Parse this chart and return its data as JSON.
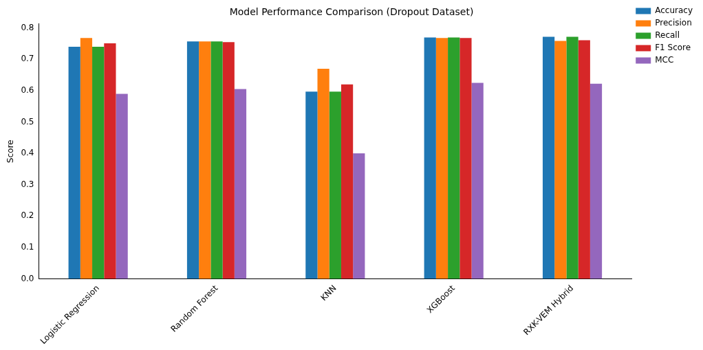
{
  "chart_data": {
    "type": "bar",
    "title": "Model Performance Comparison (Dropout Dataset)",
    "ylabel": "Score",
    "categories": [
      "Logistic Regression",
      "Random Forest",
      "KNN",
      "XGBoost",
      "RXK-VEM Hybrid"
    ],
    "series": [
      {
        "name": "Accuracy",
        "color": "#1f77b4",
        "values": [
          0.74,
          0.757,
          0.597,
          0.77,
          0.772
        ]
      },
      {
        "name": "Precision",
        "color": "#ff7f0e",
        "values": [
          0.768,
          0.757,
          0.67,
          0.768,
          0.759
        ]
      },
      {
        "name": "Recall",
        "color": "#2ca02c",
        "values": [
          0.74,
          0.757,
          0.597,
          0.77,
          0.772
        ]
      },
      {
        "name": "F1 Score",
        "color": "#d62728",
        "values": [
          0.751,
          0.755,
          0.62,
          0.768,
          0.761
        ]
      },
      {
        "name": "MCC",
        "color": "#9467bd",
        "values": [
          0.59,
          0.605,
          0.4,
          0.625,
          0.622
        ]
      }
    ],
    "ylim": [
      0,
      0.813
    ],
    "yticks": [
      {
        "value": 0,
        "label": "0.0"
      },
      {
        "value": 0.1,
        "label": "0.1"
      },
      {
        "value": 0.2,
        "label": "0.2"
      },
      {
        "value": 0.3,
        "label": "0.3"
      },
      {
        "value": 0.4,
        "label": "0.4"
      },
      {
        "value": 0.5,
        "label": "0.5"
      },
      {
        "value": 0.6,
        "label": "0.6"
      },
      {
        "value": 0.7,
        "label": "0.7"
      },
      {
        "value": 0.8,
        "label": "0.8"
      }
    ],
    "grid": false,
    "legend": "top right"
  }
}
